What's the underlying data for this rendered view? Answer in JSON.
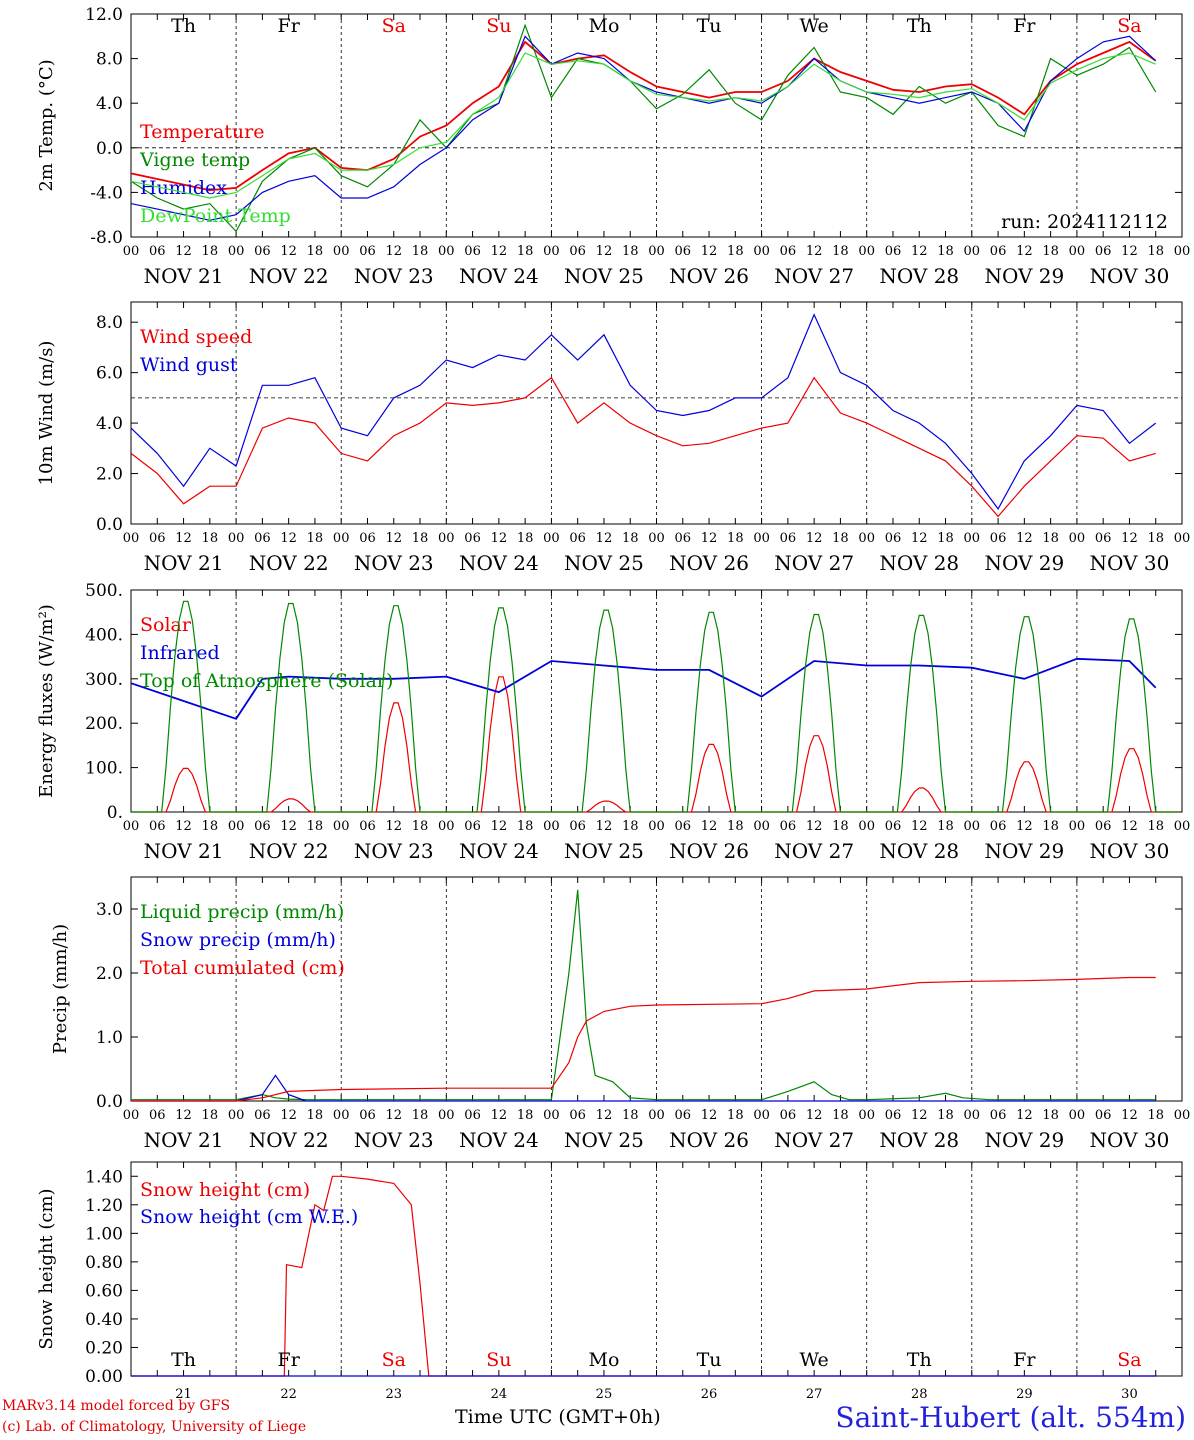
{
  "footer": {
    "model": "MARv3.14 model forced by GFS",
    "copyright": "(c) Lab. of Climatology, University of Liege",
    "time_label": "Time UTC (GMT+0h)",
    "station": "Saint-Hubert (alt. 554m)"
  },
  "run_label": "run: 2024112112",
  "colors": {
    "red": "#ee0000",
    "green": "#008800",
    "blue": "#0000dd",
    "light_green": "#33dd33"
  },
  "day_names": [
    "Th",
    "Fr",
    "Sa",
    "Su",
    "Mo",
    "Tu",
    "We",
    "Th",
    "Fr",
    "Sa"
  ],
  "weekend_days": [
    "Sa",
    "Su"
  ],
  "dates": [
    "NOV 21",
    "NOV 22",
    "NOV 23",
    "NOV 24",
    "NOV 25",
    "NOV 26",
    "NOV 27",
    "NOV 28",
    "NOV 29",
    "NOV 30"
  ],
  "day_numbers": [
    "21",
    "22",
    "23",
    "24",
    "25",
    "26",
    "27",
    "28",
    "29",
    "30"
  ],
  "hour_ticks": [
    "00",
    "06",
    "12",
    "18"
  ],
  "chart_data": [
    {
      "type": "line",
      "ylabel": "2m Temp. (°C)",
      "ylim": [
        -8,
        12
      ],
      "yticks": [
        "-8.0",
        "-4.0",
        "0.0",
        "4.0",
        "8.0",
        "12.0"
      ],
      "ytick_values": [
        -8,
        -4,
        0,
        4,
        8,
        12
      ],
      "reference_line": 0,
      "x_unit": "hours since NOV 21 00 UTC",
      "series": [
        {
          "name": "Temperature",
          "color": "#ee0000",
          "x": [
            0,
            6,
            12,
            18,
            24,
            30,
            36,
            42,
            48,
            54,
            60,
            66,
            72,
            78,
            84,
            90,
            96,
            102,
            108,
            114,
            120,
            126,
            132,
            138,
            144,
            150,
            156,
            162,
            168,
            174,
            180,
            186,
            192,
            198,
            204,
            210,
            216,
            222,
            228,
            234
          ],
          "values": [
            -2.3,
            -2.8,
            -3.3,
            -3.8,
            -3.6,
            -2.0,
            -0.5,
            0,
            -1.8,
            -2.0,
            -1.0,
            1.0,
            2.0,
            4.0,
            5.5,
            9.5,
            7.5,
            8.0,
            8.3,
            6.8,
            5.5,
            5.0,
            4.5,
            5.0,
            5.0,
            6.0,
            8.0,
            6.8,
            6.0,
            5.2,
            5.0,
            5.5,
            5.7,
            4.5,
            3.0,
            6.0,
            7.5,
            8.5,
            9.5,
            7.8
          ]
        },
        {
          "name": "Vigne temp",
          "color": "#008800",
          "x": [
            0,
            6,
            12,
            18,
            24,
            30,
            36,
            42,
            48,
            54,
            60,
            66,
            72,
            78,
            84,
            90,
            96,
            102,
            108,
            114,
            120,
            126,
            132,
            138,
            144,
            150,
            156,
            162,
            168,
            174,
            180,
            186,
            192,
            198,
            204,
            210,
            216,
            222,
            228,
            234
          ],
          "values": [
            -3.0,
            -4.5,
            -5.5,
            -5.0,
            -7.5,
            -3.0,
            -1.0,
            0,
            -2.5,
            -3.5,
            -1.5,
            2.5,
            0,
            3.0,
            4.0,
            11.0,
            4.5,
            8.0,
            7.5,
            6.0,
            3.5,
            4.8,
            7.0,
            4.0,
            2.5,
            6.5,
            9.0,
            5.0,
            4.5,
            3.0,
            5.5,
            4.0,
            5.0,
            2.0,
            1.0,
            8.0,
            6.5,
            7.5,
            9.0,
            5.0
          ]
        },
        {
          "name": "Humidex",
          "color": "#0000dd",
          "x": [
            0,
            6,
            12,
            18,
            24,
            30,
            36,
            42,
            48,
            54,
            60,
            66,
            72,
            78,
            84,
            90,
            96,
            102,
            108,
            114,
            120,
            126,
            132,
            138,
            144,
            150,
            156,
            162,
            168,
            174,
            180,
            186,
            192,
            198,
            204,
            210,
            216,
            222,
            228,
            234
          ],
          "values": [
            -5.0,
            -5.5,
            -6.0,
            -6.5,
            -6.0,
            -4.0,
            -3.0,
            -2.5,
            -4.5,
            -4.5,
            -3.5,
            -1.5,
            0,
            2.5,
            4.0,
            10.0,
            7.5,
            8.5,
            8.0,
            6.0,
            5.0,
            4.5,
            4.0,
            4.5,
            4.0,
            5.5,
            8.0,
            6.0,
            5.0,
            4.5,
            4.0,
            4.5,
            5.0,
            4.0,
            1.5,
            6.0,
            8.0,
            9.5,
            10.0,
            7.8
          ]
        },
        {
          "name": "DewPoint Temp",
          "color": "#33dd33",
          "x": [
            0,
            6,
            12,
            18,
            24,
            30,
            36,
            42,
            48,
            54,
            60,
            66,
            72,
            78,
            84,
            90,
            96,
            102,
            108,
            114,
            120,
            126,
            132,
            138,
            144,
            150,
            156,
            162,
            168,
            174,
            180,
            186,
            192,
            198,
            204,
            210,
            216,
            222,
            228,
            234
          ],
          "values": [
            -3.0,
            -3.5,
            -4.0,
            -4.5,
            -4.0,
            -2.5,
            -1.0,
            -0.5,
            -2.0,
            -2.0,
            -1.5,
            0,
            0.5,
            3.0,
            4.5,
            8.5,
            7.5,
            7.8,
            7.5,
            6.0,
            4.8,
            4.5,
            4.2,
            4.5,
            4.2,
            5.5,
            7.5,
            6.0,
            5.0,
            4.8,
            4.5,
            5.0,
            5.3,
            4.0,
            2.5,
            5.8,
            7.0,
            8.0,
            8.5,
            7.5
          ]
        }
      ]
    },
    {
      "type": "line",
      "ylabel": "10m Wind (m/s)",
      "ylim": [
        0,
        8.8
      ],
      "yticks": [
        "0.0",
        "2.0",
        "4.0",
        "6.0",
        "8.0"
      ],
      "ytick_values": [
        0,
        2,
        4,
        6,
        8
      ],
      "reference_line": 5,
      "x_unit": "hours since NOV 21 00 UTC",
      "series": [
        {
          "name": "Wind speed",
          "color": "#ee0000",
          "x": [
            0,
            6,
            12,
            18,
            24,
            30,
            36,
            42,
            48,
            54,
            60,
            66,
            72,
            78,
            84,
            90,
            96,
            102,
            108,
            114,
            120,
            126,
            132,
            138,
            144,
            150,
            156,
            162,
            168,
            174,
            180,
            186,
            192,
            198,
            204,
            210,
            216,
            222,
            228,
            234
          ],
          "values": [
            2.8,
            2.0,
            0.8,
            1.5,
            1.5,
            3.8,
            4.2,
            4.0,
            2.8,
            2.5,
            3.5,
            4.0,
            4.8,
            4.7,
            4.8,
            5.0,
            5.8,
            4.0,
            4.8,
            4.0,
            3.5,
            3.1,
            3.2,
            3.5,
            3.8,
            4.0,
            5.8,
            4.4,
            4.0,
            3.5,
            3.0,
            2.5,
            1.5,
            0.3,
            1.5,
            2.5,
            3.5,
            3.4,
            2.5,
            2.8
          ]
        },
        {
          "name": "Wind gust",
          "color": "#0000dd",
          "x": [
            0,
            6,
            12,
            18,
            24,
            30,
            36,
            42,
            48,
            54,
            60,
            66,
            72,
            78,
            84,
            90,
            96,
            102,
            108,
            114,
            120,
            126,
            132,
            138,
            144,
            150,
            156,
            162,
            168,
            174,
            180,
            186,
            192,
            198,
            204,
            210,
            216,
            222,
            228,
            234
          ],
          "values": [
            3.8,
            2.8,
            1.5,
            3.0,
            2.3,
            5.5,
            5.5,
            5.8,
            3.8,
            3.5,
            5.0,
            5.5,
            6.5,
            6.2,
            6.7,
            6.5,
            7.5,
            6.5,
            7.5,
            5.5,
            4.5,
            4.3,
            4.5,
            5.0,
            5.0,
            5.8,
            8.3,
            6.0,
            5.5,
            4.5,
            4.0,
            3.2,
            2.0,
            0.6,
            2.5,
            3.5,
            4.7,
            4.5,
            3.2,
            4.0
          ]
        }
      ]
    },
    {
      "type": "line",
      "ylabel": "Energy fluxes (W/m²)",
      "ylim": [
        0,
        500
      ],
      "yticks": [
        "0.",
        "100.",
        "200.",
        "300.",
        "400.",
        "500."
      ],
      "ytick_values": [
        0,
        100,
        200,
        300,
        400,
        500
      ],
      "x_unit": "hours since NOV 21 00 UTC",
      "series": [
        {
          "name": "Solar",
          "color": "#ee0000",
          "daily_peaks": [
            100,
            30,
            250,
            310,
            25,
            155,
            175,
            55,
            115,
            145
          ]
        },
        {
          "name": "Infrared",
          "color": "#0000dd",
          "x": [
            0,
            12,
            24,
            30,
            36,
            48,
            60,
            72,
            84,
            96,
            108,
            120,
            132,
            144,
            156,
            168,
            180,
            192,
            204,
            216,
            228,
            234
          ],
          "values": [
            290,
            250,
            210,
            300,
            305,
            300,
            300,
            305,
            270,
            340,
            330,
            320,
            320,
            260,
            340,
            330,
            330,
            325,
            300,
            345,
            340,
            280
          ]
        },
        {
          "name": "Top of Atmosphere (Solar)",
          "color": "#008800",
          "daily_peaks": [
            480,
            475,
            470,
            465,
            460,
            455,
            450,
            448,
            445,
            440
          ]
        }
      ]
    },
    {
      "type": "line",
      "ylabel": "Precip (mm/h)",
      "ylim": [
        0,
        3.5
      ],
      "yticks": [
        "0.0",
        "1.0",
        "2.0",
        "3.0"
      ],
      "ytick_values": [
        0,
        1,
        2,
        3
      ],
      "x_unit": "hours since NOV 21 00 UTC",
      "series": [
        {
          "name": "Liquid precip (mm/h)",
          "color": "#008800",
          "x": [
            0,
            24,
            30,
            33,
            36,
            40,
            48,
            72,
            96,
            100,
            102,
            104,
            106,
            110,
            114,
            120,
            144,
            150,
            156,
            160,
            164,
            168,
            180,
            186,
            190,
            196,
            204,
            228,
            234
          ],
          "values": [
            0.02,
            0.02,
            0.1,
            0.05,
            0.03,
            0.02,
            0.02,
            0.02,
            0.02,
            2.0,
            3.3,
            1.2,
            0.4,
            0.3,
            0.05,
            0.02,
            0.02,
            0.15,
            0.3,
            0.1,
            0.02,
            0.02,
            0.05,
            0.12,
            0.05,
            0.02,
            0.02,
            0.02,
            0.02
          ]
        },
        {
          "name": "Snow precip (mm/h)",
          "color": "#0000dd",
          "x": [
            0,
            24,
            30,
            33,
            36,
            40,
            48,
            234
          ],
          "values": [
            0,
            0,
            0.1,
            0.4,
            0.1,
            0,
            0,
            0
          ]
        },
        {
          "name": "Total cumulated (cm)",
          "color": "#ee0000",
          "x": [
            0,
            24,
            30,
            36,
            48,
            72,
            96,
            100,
            102,
            104,
            108,
            114,
            120,
            144,
            150,
            156,
            168,
            180,
            192,
            204,
            216,
            228,
            234
          ],
          "values": [
            0,
            0,
            0.05,
            0.15,
            0.18,
            0.2,
            0.2,
            0.6,
            1.0,
            1.25,
            1.4,
            1.48,
            1.5,
            1.52,
            1.6,
            1.72,
            1.75,
            1.85,
            1.87,
            1.88,
            1.9,
            1.93,
            1.93
          ]
        }
      ]
    },
    {
      "type": "line",
      "ylabel": "Snow height (cm)",
      "ylim": [
        0,
        1.5
      ],
      "yticks": [
        "0.00",
        "0.20",
        "0.40",
        "0.60",
        "0.80",
        "1.00",
        "1.20",
        "1.40"
      ],
      "ytick_values": [
        0,
        0.2,
        0.4,
        0.6,
        0.8,
        1.0,
        1.2,
        1.4
      ],
      "x_unit": "hours since NOV 21 00 UTC",
      "series": [
        {
          "name": "Snow height (cm)",
          "color": "#ee0000",
          "x": [
            0,
            35,
            35.5,
            39,
            42,
            44,
            46,
            48,
            54,
            60,
            64,
            66,
            68,
            70,
            234
          ],
          "values": [
            0,
            0,
            0.78,
            0.76,
            1.2,
            1.16,
            1.4,
            1.4,
            1.38,
            1.35,
            1.2,
            0.65,
            0,
            0,
            0
          ]
        },
        {
          "name": "Snow height (cm W.E.)",
          "color": "#0000dd",
          "x": [
            0,
            234
          ],
          "values": [
            0,
            0
          ]
        }
      ]
    }
  ]
}
